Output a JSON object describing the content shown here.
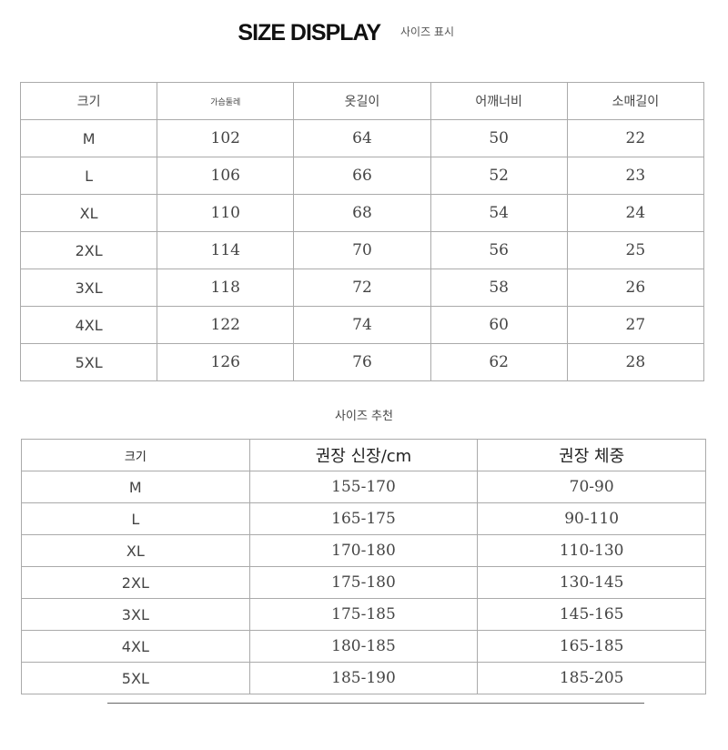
{
  "title": "SIZE DISPLAY",
  "title_ko": "사이즈 표시",
  "size_table": {
    "headers": [
      "크기",
      "가슴둘레",
      "옷길이",
      "어깨너비",
      "소매길이"
    ],
    "rows": [
      [
        "M",
        "102",
        "64",
        "50",
        "22"
      ],
      [
        "L",
        "106",
        "66",
        "52",
        "23"
      ],
      [
        "XL",
        "110",
        "68",
        "54",
        "24"
      ],
      [
        "2XL",
        "114",
        "70",
        "56",
        "25"
      ],
      [
        "3XL",
        "118",
        "72",
        "58",
        "26"
      ],
      [
        "4XL",
        "122",
        "74",
        "60",
        "27"
      ],
      [
        "5XL",
        "126",
        "76",
        "62",
        "28"
      ]
    ]
  },
  "recommend_title": "사이즈 추천",
  "recommend_table": {
    "headers": [
      "크기",
      "권장 신장/cm",
      "권장 체중"
    ],
    "rows": [
      [
        "M",
        "155-170",
        "70-90"
      ],
      [
        "L",
        "165-175",
        "90-110"
      ],
      [
        "XL",
        "170-180",
        "110-130"
      ],
      [
        "2XL",
        "175-180",
        "130-145"
      ],
      [
        "3XL",
        "175-185",
        "145-165"
      ],
      [
        "4XL",
        "180-185",
        "165-185"
      ],
      [
        "5XL",
        "185-190",
        "185-205"
      ]
    ]
  }
}
